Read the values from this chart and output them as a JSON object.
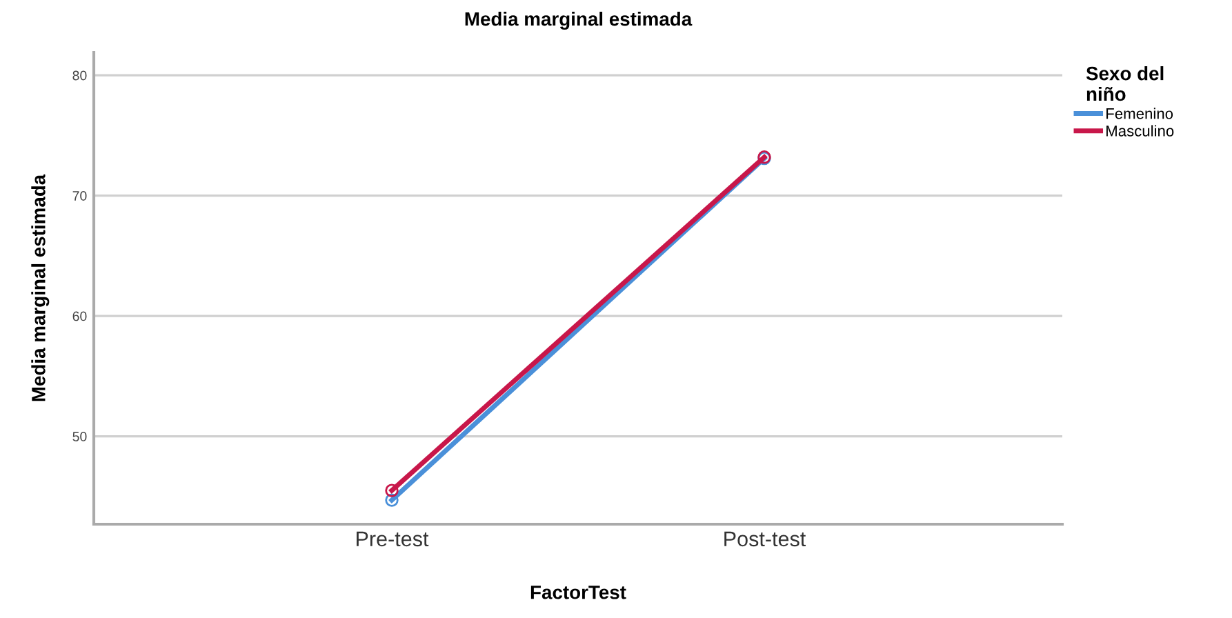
{
  "chart_data": {
    "type": "line",
    "title": "Media marginal estimada",
    "xlabel": "FactorTest",
    "ylabel": "Media marginal estimada",
    "legend_title": "Sexo del\nniño",
    "categories": [
      "Pre-test",
      "Post-test"
    ],
    "series": [
      {
        "name": "Femenino",
        "color": "#4a90d9",
        "values": [
          44.7,
          73.1
        ]
      },
      {
        "name": "Masculino",
        "color": "#c8174a",
        "values": [
          45.5,
          73.2
        ]
      }
    ],
    "ylim": [
      42.7,
      81.9
    ],
    "yticks": [
      50,
      60,
      70,
      80
    ],
    "grid": "y",
    "legend": "right",
    "marker": "circle"
  }
}
